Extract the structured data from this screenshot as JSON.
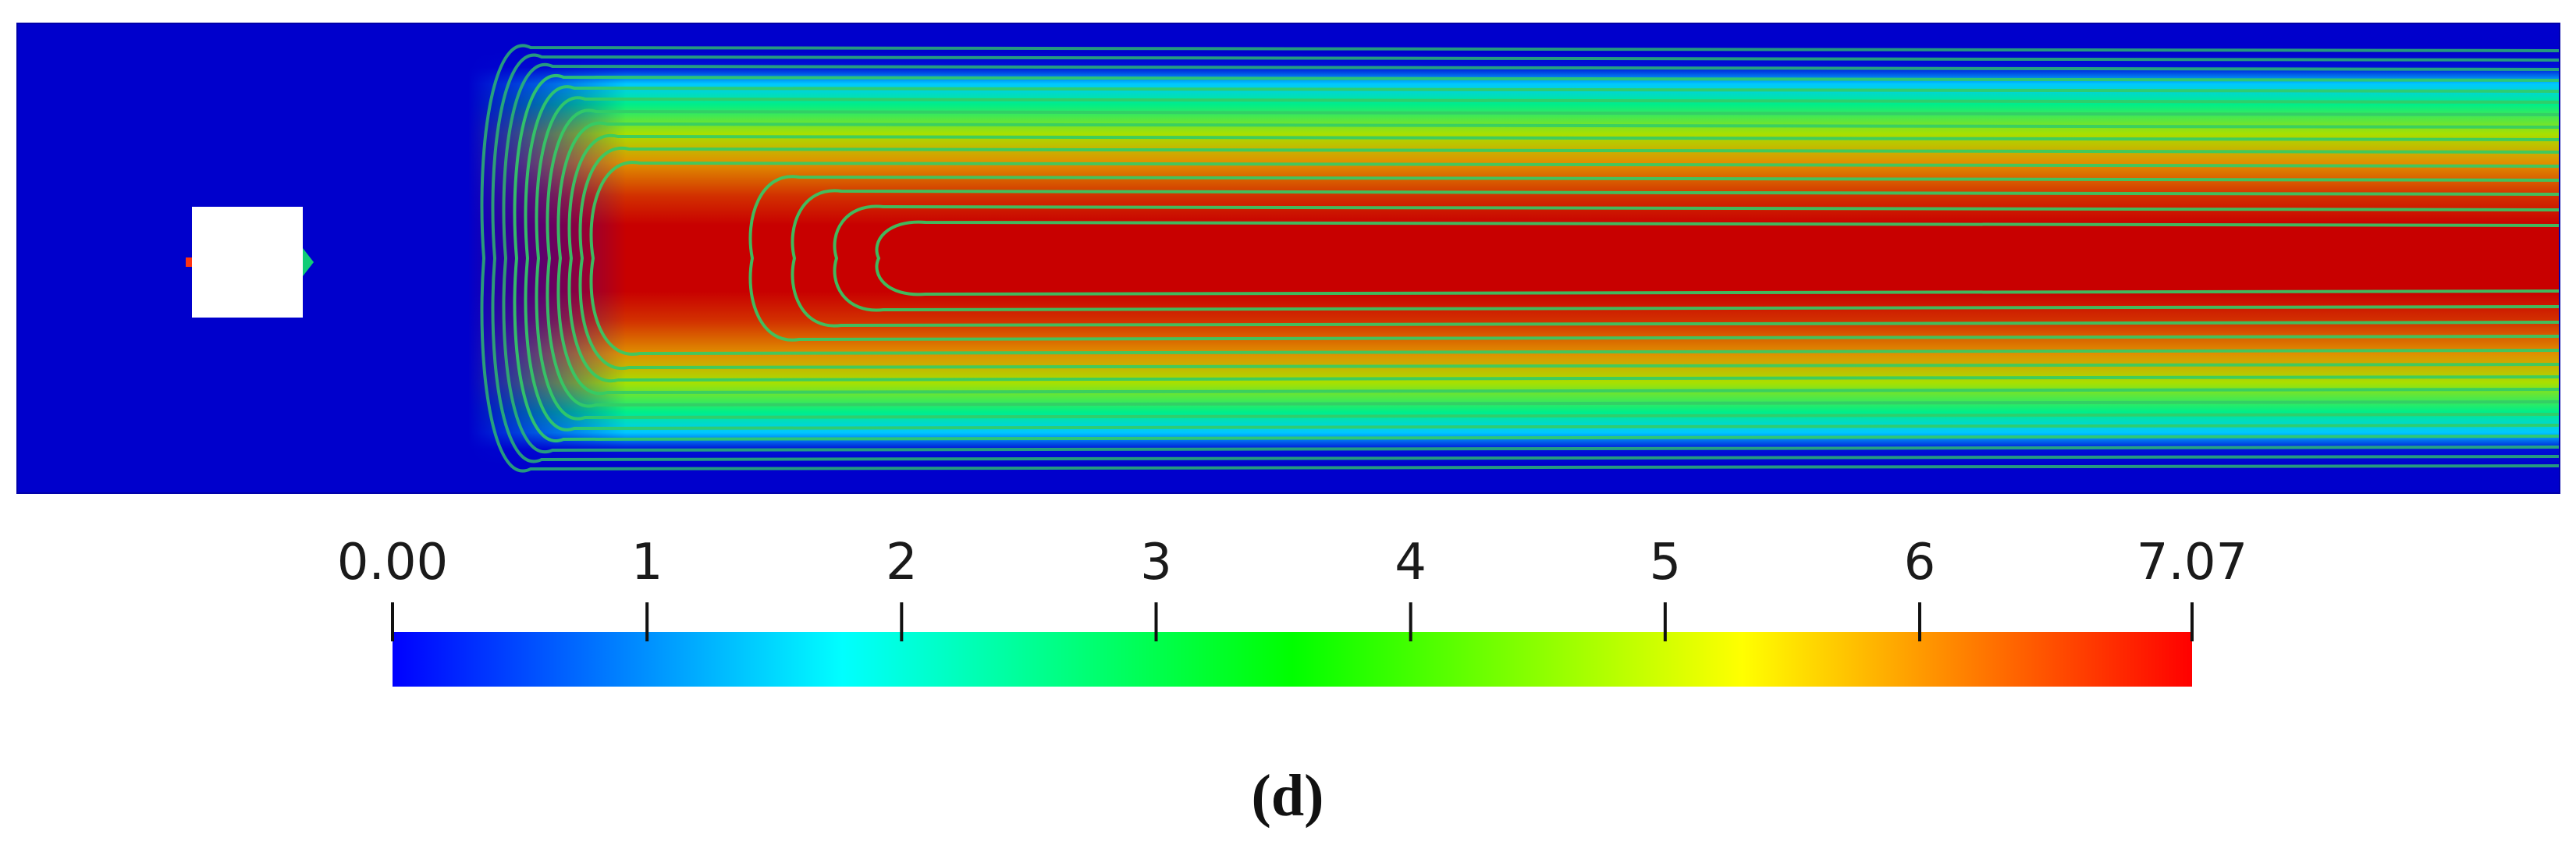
{
  "chart_data": {
    "type": "heatmap",
    "colorbar": {
      "min": 0.0,
      "max": 7.07,
      "ticks": [
        0,
        1,
        2,
        3,
        4,
        5,
        6,
        7.07
      ],
      "tick_labels": [
        "0.00",
        "1",
        "2",
        "3",
        "4",
        "5",
        "6",
        "7.07"
      ],
      "colormap": [
        "#0000ff",
        "#00ffff",
        "#00ff00",
        "#ffff00",
        "#ff0000"
      ]
    },
    "field": {
      "background_value": 0.0,
      "core_value": 7.07,
      "obstacle": "square"
    },
    "contour_color": "#33cc66"
  },
  "caption": "(d)"
}
